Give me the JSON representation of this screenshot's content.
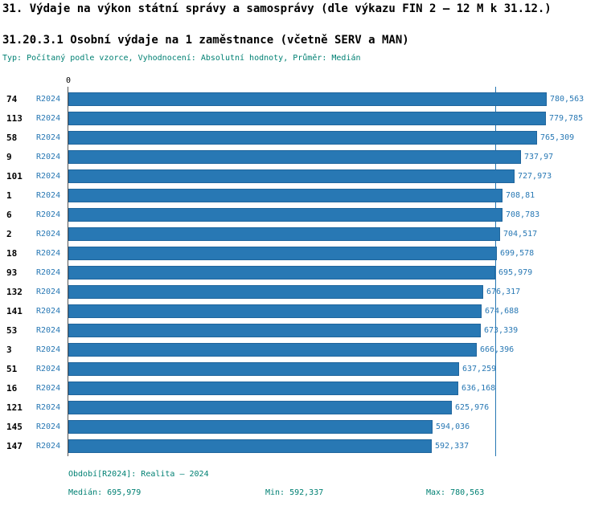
{
  "header": {
    "title": "31. Výdaje na výkon státní správy a samosprávy (dle výkazu FIN 2 – 12 M k 31.12.)",
    "section_title": "31.20.3.1 Osobní výdaje na 1 zaměstnance (včetně SERV a MAN)",
    "settings": "Typ: Počítaný podle vzorce, Vyhodnocení: Absolutní hodnoty, Průměr: Medián"
  },
  "chart_data": {
    "type": "bar",
    "orientation": "horizontal",
    "title": "31.20.3.1 Osobní výdaje na 1 zaměstnance (včetně SERV a MAN)",
    "series_label": "R2024",
    "x_axis_zero_label": "0",
    "xlim": [
      0,
      780563
    ],
    "median": 695979,
    "bar_color": "#2878b4",
    "median_line_color": "#2878b4",
    "rows": [
      {
        "id": "74",
        "value": 780563,
        "label": "780,563"
      },
      {
        "id": "113",
        "value": 779785,
        "label": "779,785"
      },
      {
        "id": "58",
        "value": 765309,
        "label": "765,309"
      },
      {
        "id": "9",
        "value": 737970,
        "label": "737,97"
      },
      {
        "id": "101",
        "value": 727973,
        "label": "727,973"
      },
      {
        "id": "1",
        "value": 708810,
        "label": "708,81"
      },
      {
        "id": "6",
        "value": 708783,
        "label": "708,783"
      },
      {
        "id": "2",
        "value": 704517,
        "label": "704,517"
      },
      {
        "id": "18",
        "value": 699578,
        "label": "699,578"
      },
      {
        "id": "93",
        "value": 695979,
        "label": "695,979"
      },
      {
        "id": "132",
        "value": 676317,
        "label": "676,317"
      },
      {
        "id": "141",
        "value": 674688,
        "label": "674,688"
      },
      {
        "id": "53",
        "value": 673339,
        "label": "673,339"
      },
      {
        "id": "3",
        "value": 666396,
        "label": "666,396"
      },
      {
        "id": "51",
        "value": 637259,
        "label": "637,259"
      },
      {
        "id": "16",
        "value": 636168,
        "label": "636,168"
      },
      {
        "id": "121",
        "value": 625976,
        "label": "625,976"
      },
      {
        "id": "145",
        "value": 594036,
        "label": "594,036"
      },
      {
        "id": "147",
        "value": 592337,
        "label": "592,337"
      }
    ]
  },
  "footer": {
    "period": "Období[R2024]: Realita – 2024",
    "median": "Medián: 695,979",
    "min": "Min: 592,337",
    "max": "Max: 780,563"
  }
}
